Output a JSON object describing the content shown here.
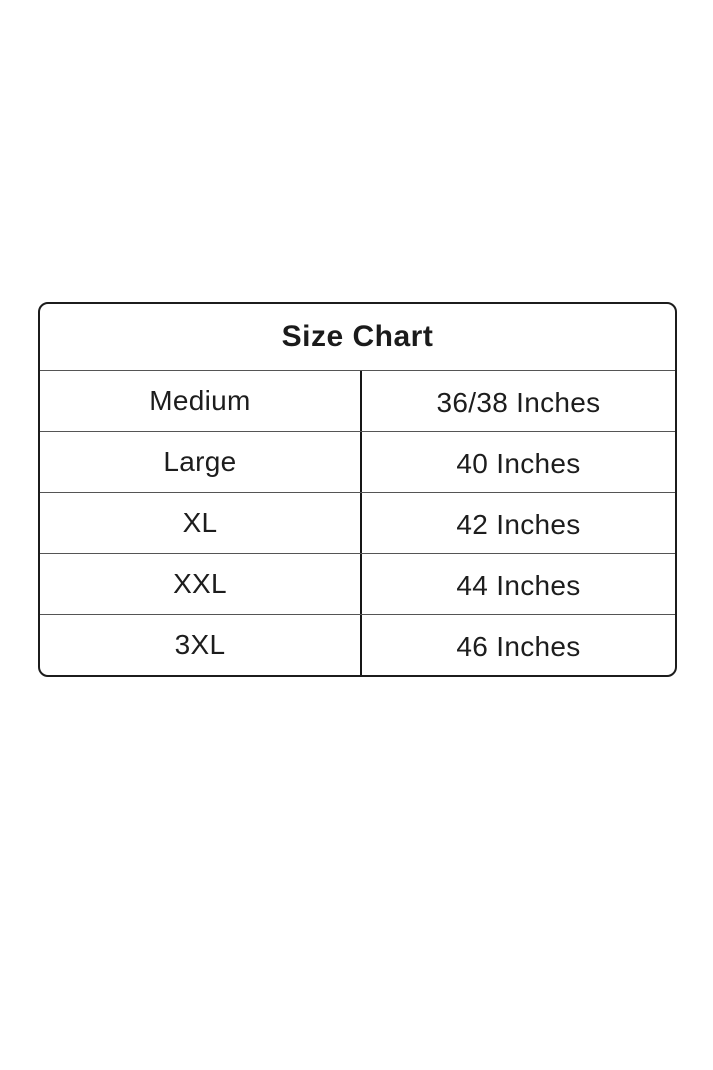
{
  "chart_data": {
    "type": "table",
    "title": "Size Chart",
    "rows": [
      [
        "Medium",
        "36/38 Inches"
      ],
      [
        "Large",
        "40 Inches"
      ],
      [
        "XL",
        "42 Inches"
      ],
      [
        "XXL",
        "44 Inches"
      ],
      [
        "3XL",
        "46 Inches"
      ]
    ],
    "layout_hints": {
      "header_spans_both_columns": true,
      "column_split": "50/50",
      "grid": "full borders, rounded outer corners"
    }
  },
  "colors": {
    "background": "#ffffff",
    "outer_border": "#1c1c1c",
    "horizontal_divider": "#555555",
    "vertical_divider": "#161616",
    "text": "#1d1d1d"
  }
}
